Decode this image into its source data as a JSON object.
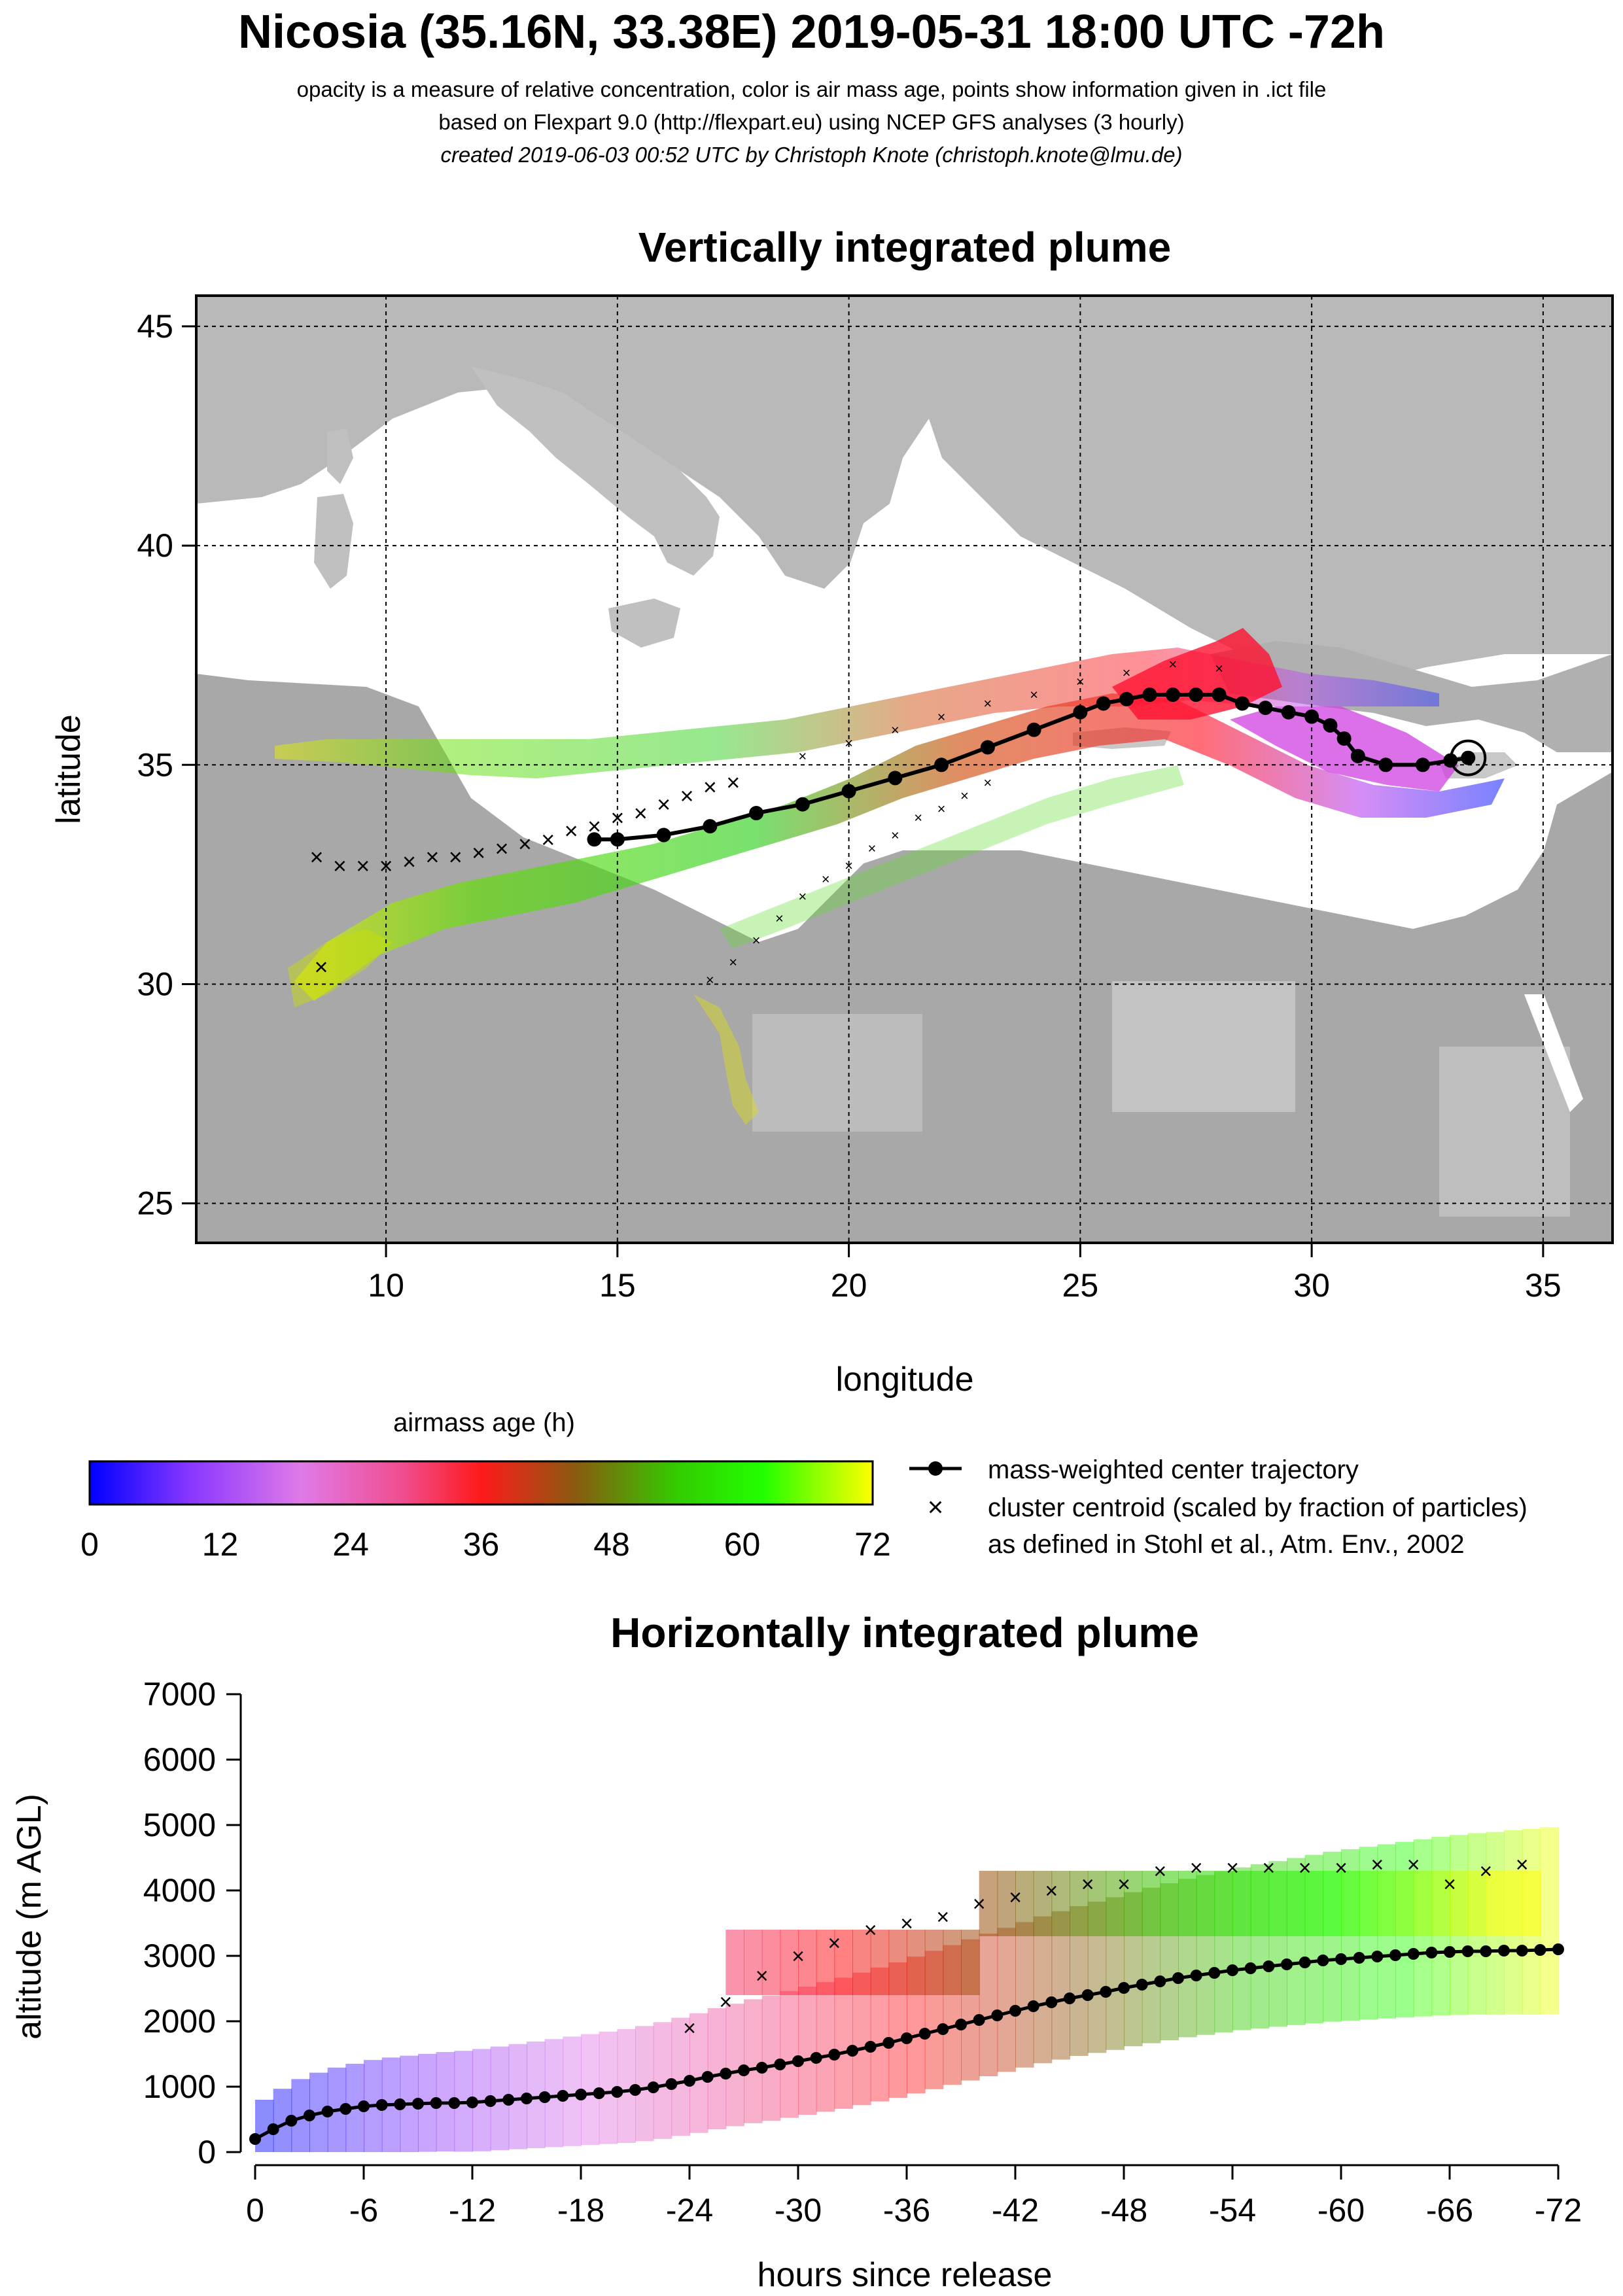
{
  "header": {
    "title": "Nicosia (35.16N, 33.38E) 2019-05-31 18:00 UTC -72h",
    "line1": "opacity is a measure of relative concentration, color is air mass age, points show information given in .ict file",
    "line2": "based on Flexpart 9.0 (http://flexpart.eu) using NCEP GFS analyses (3 hourly)",
    "line3": "created 2019-06-03 00:52 UTC by Christoph Knote (christoph.knote@lmu.de)"
  },
  "colors": {
    "age_gradient": [
      "#0000ff",
      "#8a38ff",
      "#e07ae8",
      "#f04d8f",
      "#ff1a1a",
      "#8a5a10",
      "#33cc00",
      "#22ff00",
      "#ffff00"
    ],
    "land": "#b4b4b4",
    "sea": "#ffffff"
  },
  "map": {
    "title": "Vertically integrated plume",
    "xlabel": "longitude",
    "ylabel": "latitude",
    "xticks": [
      "10",
      "15",
      "20",
      "25",
      "30",
      "35"
    ],
    "yticks": [
      "25",
      "30",
      "35",
      "40",
      "45"
    ],
    "release_point": {
      "lon": 33.38,
      "lat": 35.16
    }
  },
  "colorbar": {
    "title": "airmass age (h)",
    "ticks": [
      "0",
      "12",
      "24",
      "36",
      "48",
      "60",
      "72"
    ]
  },
  "legend": {
    "line_label": "mass-weighted center trajectory",
    "cross_label": "cluster centroid (scaled by fraction of particles)",
    "cross_label2": "as defined in Stohl et al., Atm. Env., 2002"
  },
  "profile": {
    "title": "Horizontally integrated plume",
    "xlabel": "hours since release",
    "ylabel": "altitude (m AGL)",
    "xticks": [
      "0",
      "-6",
      "-12",
      "-18",
      "-24",
      "-30",
      "-36",
      "-42",
      "-48",
      "-54",
      "-60",
      "-66",
      "-72"
    ],
    "yticks": [
      "0",
      "1000",
      "2000",
      "3000",
      "4000",
      "5000",
      "6000",
      "7000"
    ]
  },
  "chart_data": [
    {
      "type": "line",
      "title": "Vertically integrated plume",
      "xlabel": "longitude",
      "ylabel": "latitude",
      "xlim": [
        5.9,
        36.5
      ],
      "ylim": [
        24.1,
        45.7
      ],
      "series": [
        {
          "name": "mass-weighted center trajectory",
          "x": [
            33.38,
            33.0,
            32.4,
            31.6,
            31.0,
            30.7,
            30.4,
            30.0,
            29.5,
            29.0,
            28.5,
            28.0,
            27.5,
            27.0,
            26.5,
            26.0,
            25.5,
            25.0,
            24.0,
            23.0,
            22.0,
            21.0,
            20.0,
            19.0,
            18.0,
            17.0,
            16.0,
            15.0,
            14.5
          ],
          "y": [
            35.16,
            35.1,
            35.0,
            35.0,
            35.2,
            35.6,
            35.9,
            36.1,
            36.2,
            36.3,
            36.4,
            36.6,
            36.6,
            36.6,
            36.6,
            36.5,
            36.4,
            36.2,
            35.8,
            35.4,
            35.0,
            34.7,
            34.4,
            34.1,
            33.9,
            33.6,
            33.4,
            33.3,
            33.3
          ]
        },
        {
          "name": "cluster centroid (scaled by fraction of particles)",
          "x": [
            8.5,
            9.0,
            9.5,
            10.0,
            10.5,
            11.0,
            11.5,
            12.0,
            12.5,
            13.0,
            13.5,
            14.0,
            14.5,
            15.0,
            15.5,
            16.0,
            16.5,
            17.0,
            17.5,
            8.6
          ],
          "y": [
            32.9,
            32.7,
            32.7,
            32.7,
            32.8,
            32.9,
            32.9,
            33.0,
            33.1,
            33.2,
            33.3,
            33.5,
            33.6,
            33.8,
            33.9,
            34.1,
            34.3,
            34.5,
            34.6,
            30.4
          ]
        },
        {
          "x": [
            17.0,
            17.5,
            18.0,
            18.5,
            19.0,
            19.5,
            20.0,
            20.5,
            21.0,
            21.5,
            22.0,
            22.5,
            23.0
          ],
          "y": [
            30.1,
            30.5,
            31.0,
            31.5,
            32.0,
            32.4,
            32.7,
            33.1,
            33.4,
            33.8,
            34.0,
            34.3,
            34.6
          ]
        },
        {
          "x": [
            19.0,
            20.0,
            21.0,
            22.0,
            23.0,
            24.0,
            25.0,
            26.0,
            27.0,
            28.0
          ],
          "y": [
            35.2,
            35.5,
            35.8,
            36.1,
            36.4,
            36.6,
            36.9,
            37.1,
            37.3,
            37.2
          ]
        }
      ]
    },
    {
      "type": "line",
      "title": "Horizontally integrated plume",
      "xlabel": "hours since release",
      "ylabel": "altitude (m AGL)",
      "xlim": [
        0,
        -72
      ],
      "ylim": [
        0,
        7000
      ],
      "series": [
        {
          "name": "mass-weighted center trajectory",
          "x": [
            0,
            -1,
            -2,
            -3,
            -4,
            -5,
            -6,
            -7,
            -8,
            -9,
            -10,
            -11,
            -12,
            -13,
            -14,
            -15,
            -16,
            -17,
            -18,
            -19,
            -20,
            -21,
            -22,
            -23,
            -24,
            -25,
            -26,
            -27,
            -28,
            -29,
            -30,
            -31,
            -32,
            -33,
            -34,
            -35,
            -36,
            -37,
            -38,
            -39,
            -40,
            -41,
            -42,
            -43,
            -44,
            -45,
            -46,
            -47,
            -48,
            -49,
            -50,
            -51,
            -52,
            -53,
            -54,
            -55,
            -56,
            -57,
            -58,
            -59,
            -60,
            -61,
            -62,
            -63,
            -64,
            -65,
            -66,
            -67,
            -68,
            -69,
            -70,
            -71,
            -72
          ],
          "y": [
            200,
            350,
            480,
            560,
            620,
            660,
            700,
            720,
            730,
            740,
            750,
            750,
            760,
            780,
            800,
            820,
            840,
            860,
            880,
            900,
            920,
            950,
            990,
            1040,
            1090,
            1150,
            1200,
            1250,
            1290,
            1340,
            1390,
            1440,
            1490,
            1550,
            1610,
            1670,
            1740,
            1810,
            1880,
            1950,
            2020,
            2090,
            2160,
            2230,
            2290,
            2350,
            2400,
            2450,
            2510,
            2560,
            2610,
            2660,
            2700,
            2740,
            2780,
            2810,
            2840,
            2870,
            2900,
            2930,
            2950,
            2970,
            2990,
            3010,
            3030,
            3050,
            3060,
            3070,
            3070,
            3080,
            3080,
            3090,
            3100
          ]
        },
        {
          "name": "cluster centroid (scaled by fraction of particles)",
          "x": [
            -24,
            -26,
            -28,
            -30,
            -32,
            -34,
            -36,
            -38,
            -40,
            -42,
            -44,
            -46,
            -48,
            -50,
            -52,
            -54,
            -56,
            -58,
            -60,
            -62,
            -64,
            -66,
            -68,
            -70
          ],
          "y": [
            1900,
            2300,
            2700,
            3000,
            3200,
            3400,
            3500,
            3600,
            3800,
            3900,
            4000,
            4100,
            4100,
            4300,
            4350,
            4350,
            4350,
            4350,
            4350,
            4400,
            4400,
            4100,
            4300,
            4400
          ]
        }
      ]
    }
  ]
}
